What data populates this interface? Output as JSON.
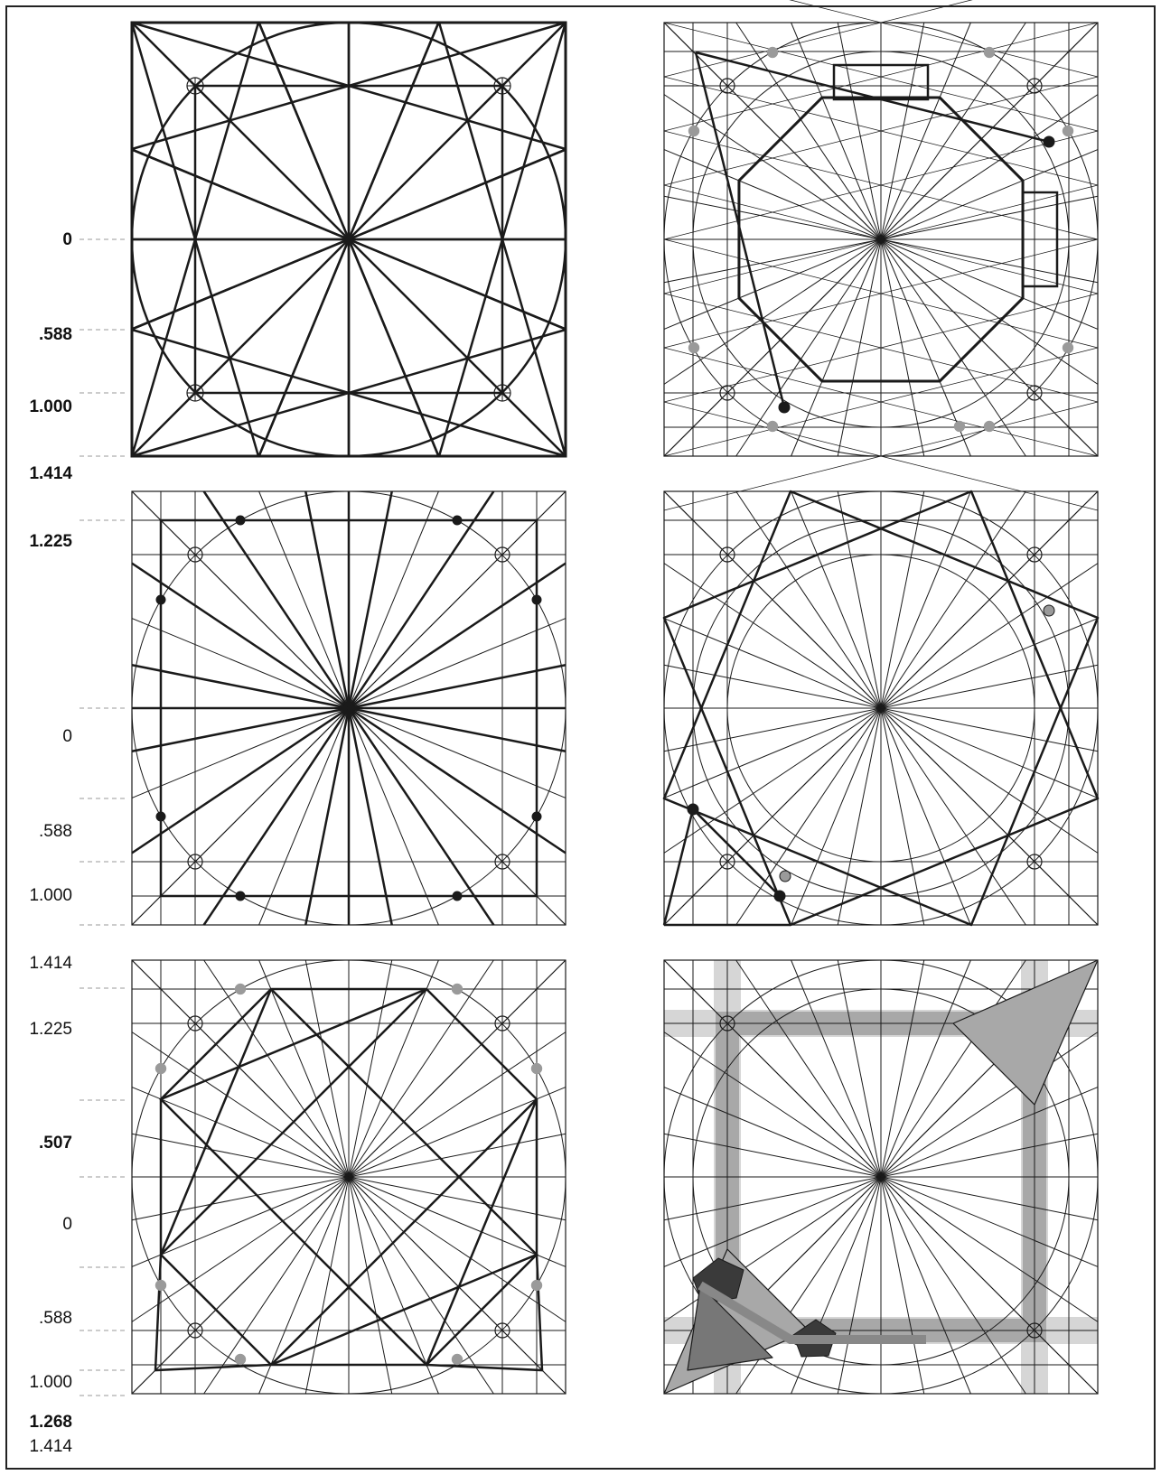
{
  "panels": [
    {
      "name": "panel-square-circle-base",
      "labels": [
        {
          "text": "0",
          "bold": true
        },
        {
          "text": ".588",
          "bold": true
        },
        {
          "text": "1.000",
          "bold": true
        },
        {
          "text": "1.414",
          "bold": true
        }
      ]
    },
    {
      "name": "panel-octagon-construction",
      "labels": []
    },
    {
      "name": "panel-radial-16",
      "labels": [
        {
          "text": "1.225",
          "bold": true
        },
        {
          "text": "0",
          "bold": false
        },
        {
          "text": ".588",
          "bold": false
        },
        {
          "text": "1.000",
          "bold": false
        },
        {
          "text": "1.414",
          "bold": false
        }
      ]
    },
    {
      "name": "panel-star-polygons",
      "labels": []
    },
    {
      "name": "panel-star-octagon",
      "labels": [
        {
          "text": "1.225",
          "bold": false
        },
        {
          "text": ".507",
          "bold": true
        },
        {
          "text": "0",
          "bold": false
        },
        {
          "text": ".588",
          "bold": false
        },
        {
          "text": "1.000",
          "bold": false
        },
        {
          "text": "1.268",
          "bold": true
        },
        {
          "text": "1.414",
          "bold": false
        }
      ]
    },
    {
      "name": "panel-shaded-band-pattern",
      "labels": []
    }
  ],
  "colors": {
    "stroke": "#1a1a1a",
    "gray_dot": "#9a9a9a",
    "band_light": "#d6d6d6",
    "band_mid": "#a8a8a8",
    "band_dark": "#3a3a3a",
    "dash": "#bbbbbb"
  }
}
